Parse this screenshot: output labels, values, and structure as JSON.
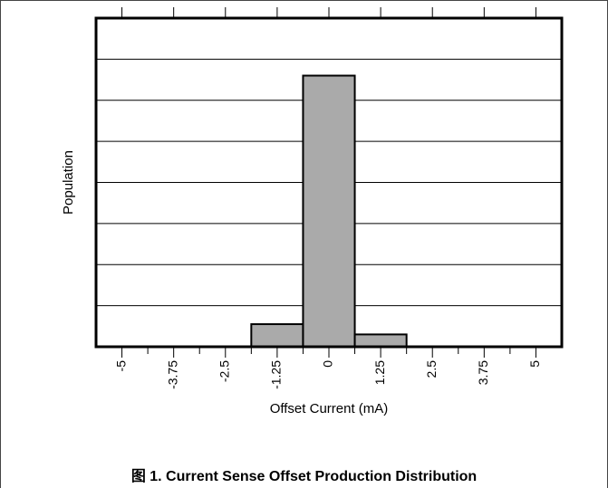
{
  "chart_data": {
    "type": "bar",
    "title": "",
    "xlabel": "Offset Current (mA)",
    "ylabel": "Population",
    "x_ticks": [
      "-5",
      "-3.75",
      "-2.5",
      "-1.25",
      "0",
      "1.25",
      "2.5",
      "3.75",
      "5"
    ],
    "xlim": [
      -5.625,
      5.625
    ],
    "ylim": [
      0,
      8
    ],
    "y_gridlines": [
      1,
      2,
      3,
      4,
      5,
      6,
      7
    ],
    "y_tick_labels": false,
    "grid": true,
    "bins": [
      {
        "x0": -1.875,
        "x1": -0.625,
        "value": 0.55
      },
      {
        "x0": -0.625,
        "x1": 0.625,
        "value": 6.6
      },
      {
        "x0": 0.625,
        "x1": 1.875,
        "value": 0.3
      }
    ],
    "bar_color": "#aaaaaa"
  },
  "caption": "图 1. Current Sense Offset Production Distribution"
}
